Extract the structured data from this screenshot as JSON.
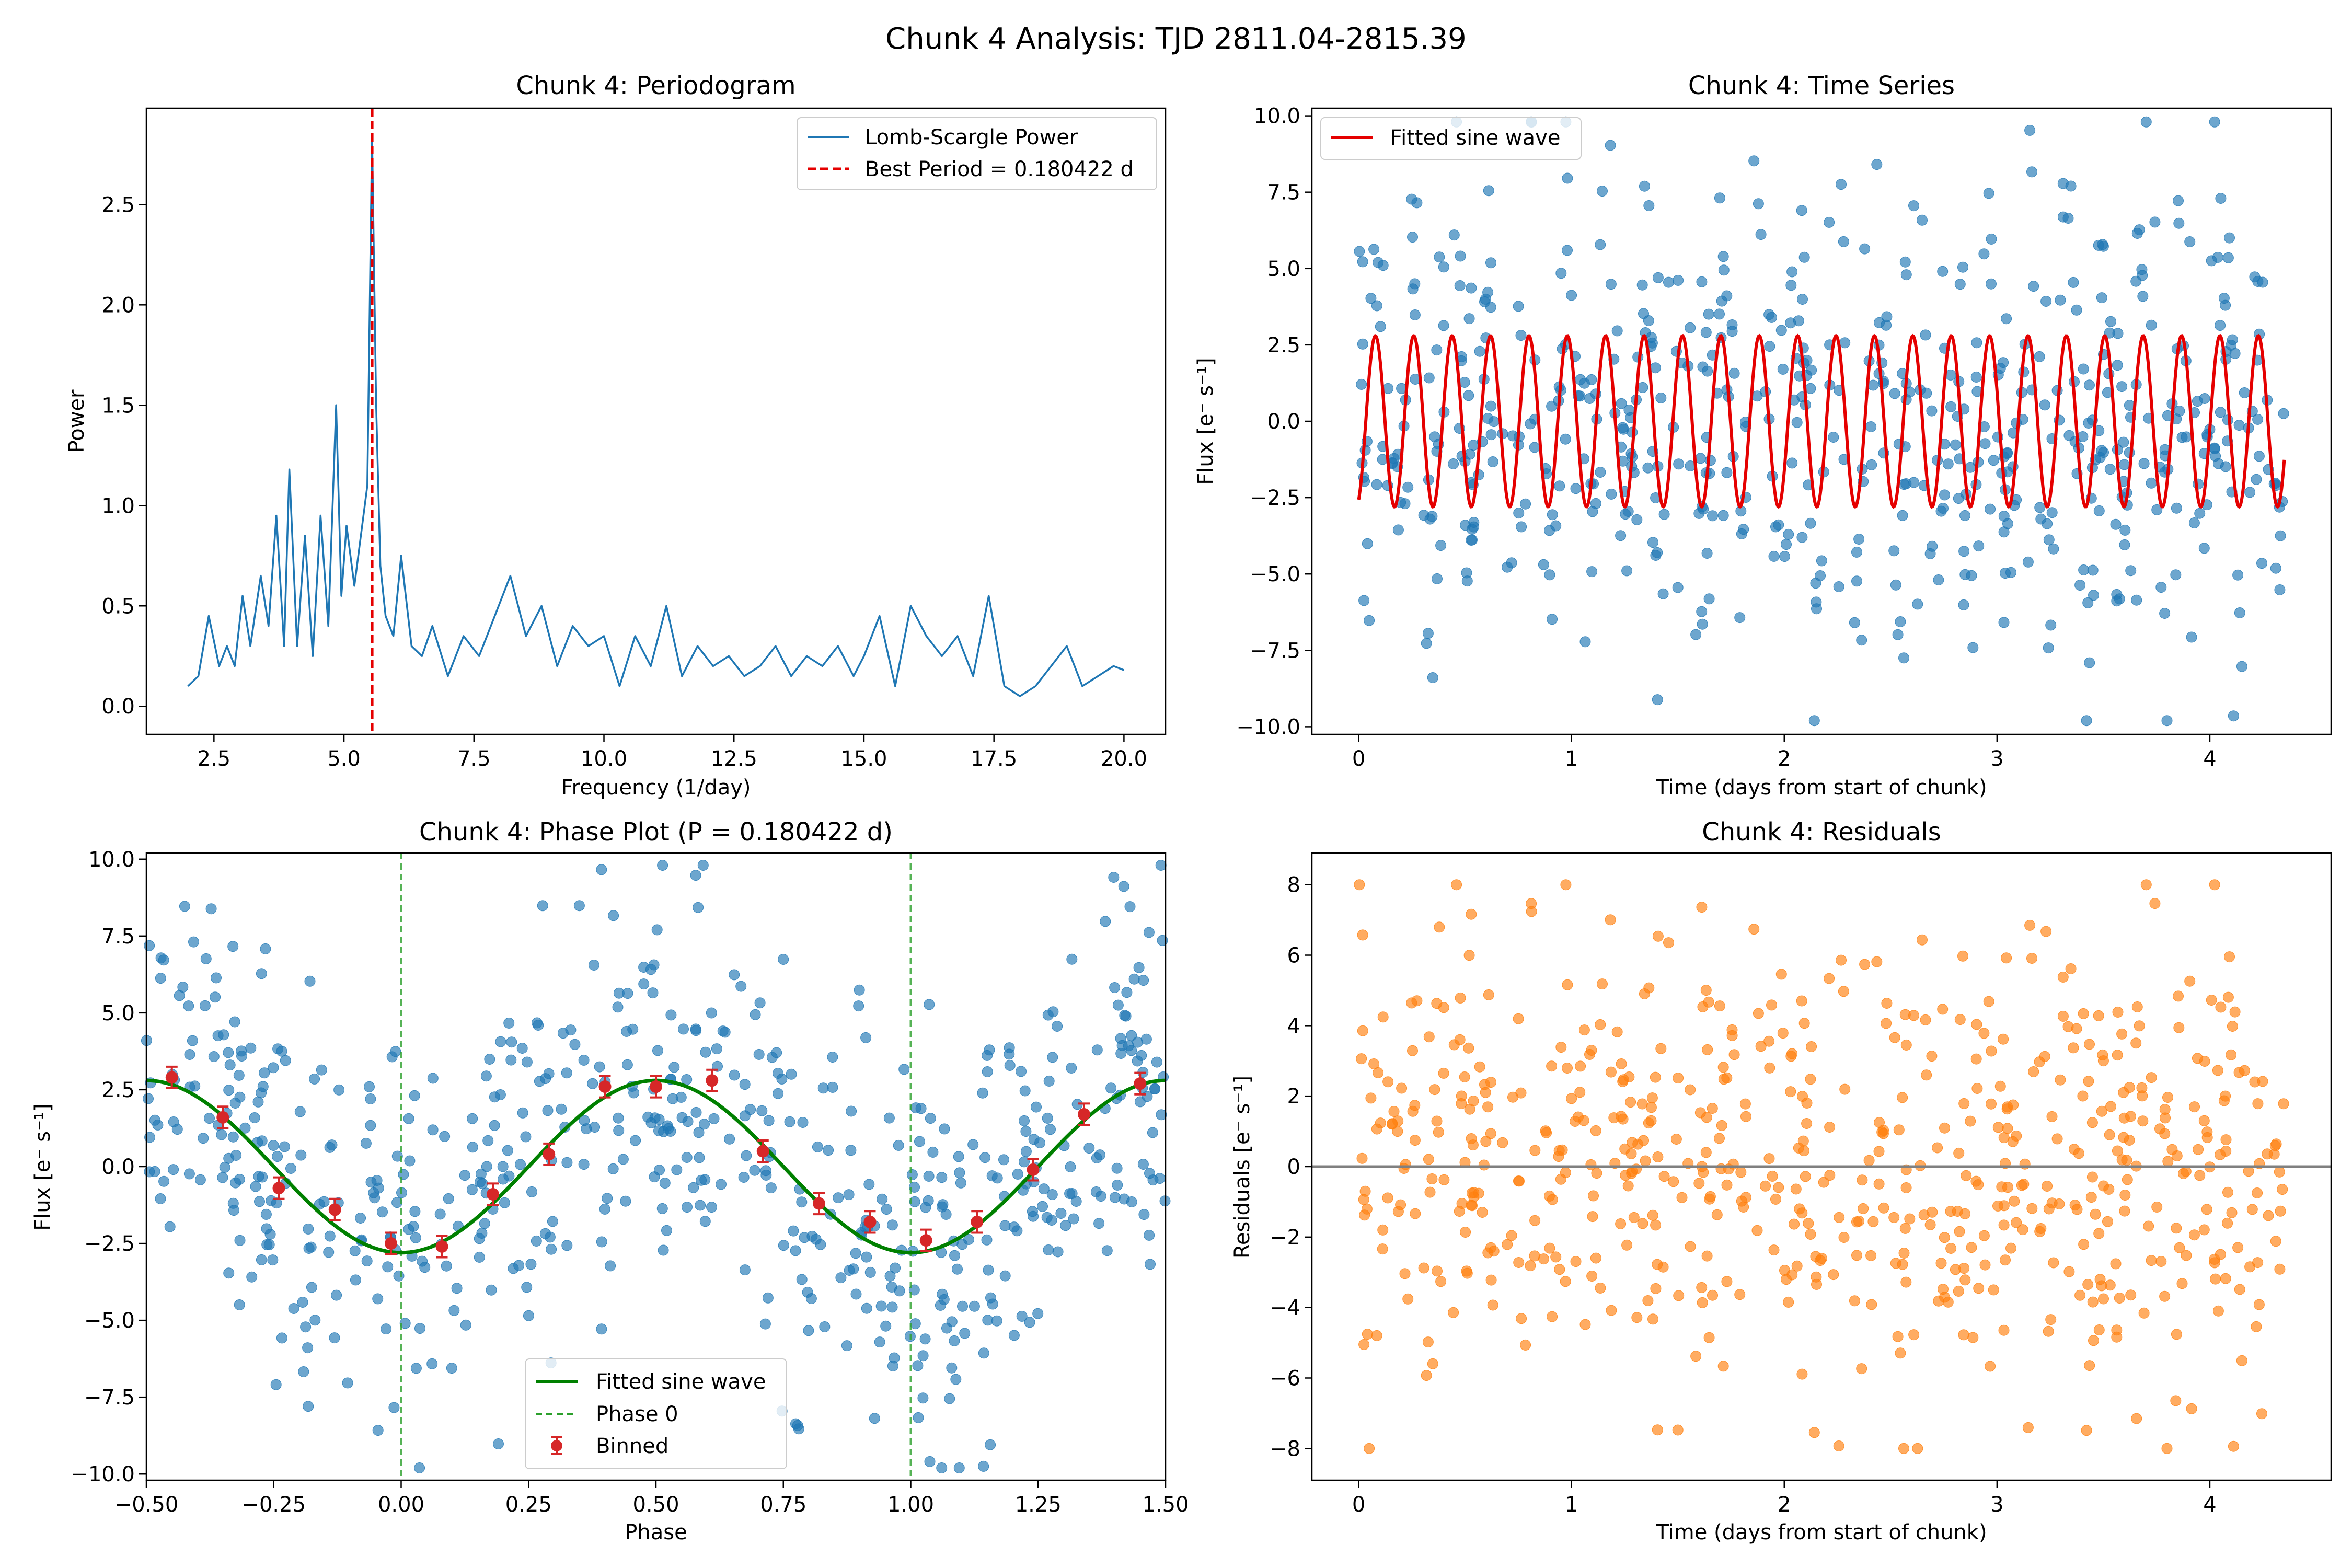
{
  "suptitle": "Chunk 4 Analysis: TJD 2811.04-2815.39",
  "colors": {
    "scatter_blue": "#1f77b4",
    "fit_red": "#e50000",
    "fit_green": "#008000",
    "phase0_green": "#2ca02c",
    "binned_red": "#d62728",
    "residual_orange": "#ff7f0e",
    "zero_line": "#808080"
  },
  "chart_data": [
    {
      "type": "line",
      "title": "Chunk 4: Periodogram",
      "xlabel": "Frequency (1/day)",
      "ylabel": "Power",
      "xlim": [
        1.2,
        20.8
      ],
      "ylim": [
        -0.14,
        2.98
      ],
      "xticks": [
        2.5,
        5.0,
        7.5,
        10.0,
        12.5,
        15.0,
        17.5,
        20.0
      ],
      "yticks": [
        0.0,
        0.5,
        1.0,
        1.5,
        2.0,
        2.5
      ],
      "legend": [
        "Lomb-Scargle Power",
        "Best Period = 0.180422 d"
      ],
      "legend_position": "upper right",
      "best_period": 0.180422,
      "best_frequency": 5.543,
      "series": [
        {
          "name": "Lomb-Scargle Power",
          "x": [
            2.0,
            2.2,
            2.4,
            2.6,
            2.75,
            2.9,
            3.05,
            3.2,
            3.4,
            3.55,
            3.7,
            3.85,
            3.95,
            4.1,
            4.25,
            4.4,
            4.55,
            4.7,
            4.85,
            4.95,
            5.05,
            5.2,
            5.35,
            5.45,
            5.54,
            5.62,
            5.7,
            5.8,
            5.95,
            6.1,
            6.3,
            6.5,
            6.7,
            7.0,
            7.3,
            7.6,
            7.9,
            8.2,
            8.5,
            8.8,
            9.1,
            9.4,
            9.7,
            10.0,
            10.3,
            10.6,
            10.9,
            11.2,
            11.5,
            11.8,
            12.1,
            12.4,
            12.7,
            13.0,
            13.3,
            13.6,
            13.9,
            14.2,
            14.5,
            14.8,
            15.0,
            15.3,
            15.6,
            15.9,
            16.2,
            16.5,
            16.8,
            17.1,
            17.4,
            17.7,
            18.0,
            18.3,
            18.6,
            18.9,
            19.2,
            19.5,
            19.8,
            20.0
          ],
          "values": [
            0.1,
            0.15,
            0.45,
            0.2,
            0.3,
            0.2,
            0.55,
            0.3,
            0.65,
            0.4,
            0.95,
            0.3,
            1.18,
            0.3,
            0.85,
            0.25,
            0.95,
            0.4,
            1.5,
            0.55,
            0.9,
            0.6,
            0.9,
            1.1,
            2.85,
            1.5,
            0.7,
            0.45,
            0.35,
            0.75,
            0.3,
            0.25,
            0.4,
            0.15,
            0.35,
            0.25,
            0.45,
            0.65,
            0.35,
            0.5,
            0.2,
            0.4,
            0.3,
            0.35,
            0.1,
            0.35,
            0.2,
            0.5,
            0.15,
            0.3,
            0.2,
            0.25,
            0.15,
            0.2,
            0.3,
            0.15,
            0.25,
            0.2,
            0.3,
            0.15,
            0.25,
            0.45,
            0.1,
            0.5,
            0.35,
            0.25,
            0.35,
            0.15,
            0.55,
            0.1,
            0.05,
            0.1,
            0.2,
            0.3,
            0.1,
            0.15,
            0.2,
            0.18
          ]
        }
      ]
    },
    {
      "type": "scatter",
      "title": "Chunk 4: Time Series",
      "xlabel": "Time (days from start of chunk)",
      "ylabel": "Flux [e⁻ s⁻¹]",
      "xlim": [
        -0.22,
        4.57
      ],
      "ylim": [
        -10.25,
        10.25
      ],
      "xticks": [
        0,
        1,
        2,
        3,
        4
      ],
      "yticks": [
        -10.0,
        -7.5,
        -5.0,
        -2.5,
        0.0,
        2.5,
        5.0,
        7.5,
        10.0
      ],
      "legend": [
        "Fitted sine wave"
      ],
      "legend_position": "upper left",
      "fit": {
        "name": "Fitted sine wave",
        "amplitude": 2.8,
        "period": 0.180422,
        "t_min": 0.0,
        "t_max": 4.35,
        "phase_at_t0": -1.16
      },
      "points_description_count": 600
    },
    {
      "type": "scatter",
      "title": "Chunk 4: Phase Plot (P = 0.180422 d)",
      "xlabel": "Phase",
      "ylabel": "Flux [e⁻ s⁻¹]",
      "xlim": [
        -0.5,
        1.5
      ],
      "ylim": [
        -10.2,
        10.2
      ],
      "xticks": [
        -0.5,
        -0.25,
        0.0,
        0.25,
        0.5,
        0.75,
        1.0,
        1.25,
        1.5
      ],
      "yticks": [
        -10.0,
        -7.5,
        -5.0,
        -2.5,
        0.0,
        2.5,
        5.0,
        7.5,
        10.0
      ],
      "legend": [
        "Fitted sine wave",
        "Phase 0",
        "Binned"
      ],
      "legend_position": "lower center",
      "phase_lines": [
        0.0,
        1.0
      ],
      "binned": {
        "name": "Binned",
        "x": [
          -0.45,
          -0.35,
          -0.24,
          -0.13,
          -0.02,
          0.08,
          0.18,
          0.29,
          0.4,
          0.5,
          0.61,
          0.71,
          0.82,
          0.92,
          1.03,
          1.13,
          1.24,
          1.34,
          1.45
        ],
        "y": [
          2.9,
          1.6,
          -0.7,
          -1.4,
          -2.5,
          -2.6,
          -0.9,
          0.4,
          2.6,
          2.6,
          2.8,
          0.5,
          -1.2,
          -1.8,
          -2.4,
          -1.8,
          -0.1,
          1.7,
          2.7
        ],
        "yerr": [
          0.35,
          0.35,
          0.35,
          0.35,
          0.35,
          0.35,
          0.35,
          0.35,
          0.35,
          0.35,
          0.35,
          0.35,
          0.35,
          0.35,
          0.35,
          0.35,
          0.35,
          0.35,
          0.35
        ]
      },
      "fit": {
        "name": "Fitted sine wave",
        "amplitude": 2.8,
        "min_phase": 0.0
      }
    },
    {
      "type": "scatter",
      "title": "Chunk 4: Residuals",
      "xlabel": "Time (days from start of chunk)",
      "ylabel": "Residuals [e⁻ s⁻¹]",
      "xlim": [
        -0.22,
        4.57
      ],
      "ylim": [
        -8.9,
        8.9
      ],
      "xticks": [
        0,
        1,
        2,
        3,
        4
      ],
      "yticks": [
        -8,
        -6,
        -4,
        -2,
        0,
        2,
        4,
        6,
        8
      ],
      "zero_line": 0,
      "points_description_count": 600
    }
  ],
  "ticklabels": {
    "p1x": [
      "2.5",
      "5.0",
      "7.5",
      "10.0",
      "12.5",
      "15.0",
      "17.5",
      "20.0"
    ],
    "p1y": [
      "0.0",
      "0.5",
      "1.0",
      "1.5",
      "2.0",
      "2.5"
    ],
    "p2x": [
      "0",
      "1",
      "2",
      "3",
      "4"
    ],
    "p2y": [
      "−10.0",
      "−7.5",
      "−5.0",
      "−2.5",
      "0.0",
      "2.5",
      "5.0",
      "7.5",
      "10.0"
    ],
    "p3x": [
      "−0.50",
      "−0.25",
      "0.00",
      "0.25",
      "0.50",
      "0.75",
      "1.00",
      "1.25",
      "1.50"
    ],
    "p3y": [
      "−10.0",
      "−7.5",
      "−5.0",
      "−2.5",
      "0.0",
      "2.5",
      "5.0",
      "7.5",
      "10.0"
    ],
    "p4x": [
      "0",
      "1",
      "2",
      "3",
      "4"
    ],
    "p4y": [
      "−8",
      "−6",
      "−4",
      "−2",
      "0",
      "2",
      "4",
      "6",
      "8"
    ]
  }
}
